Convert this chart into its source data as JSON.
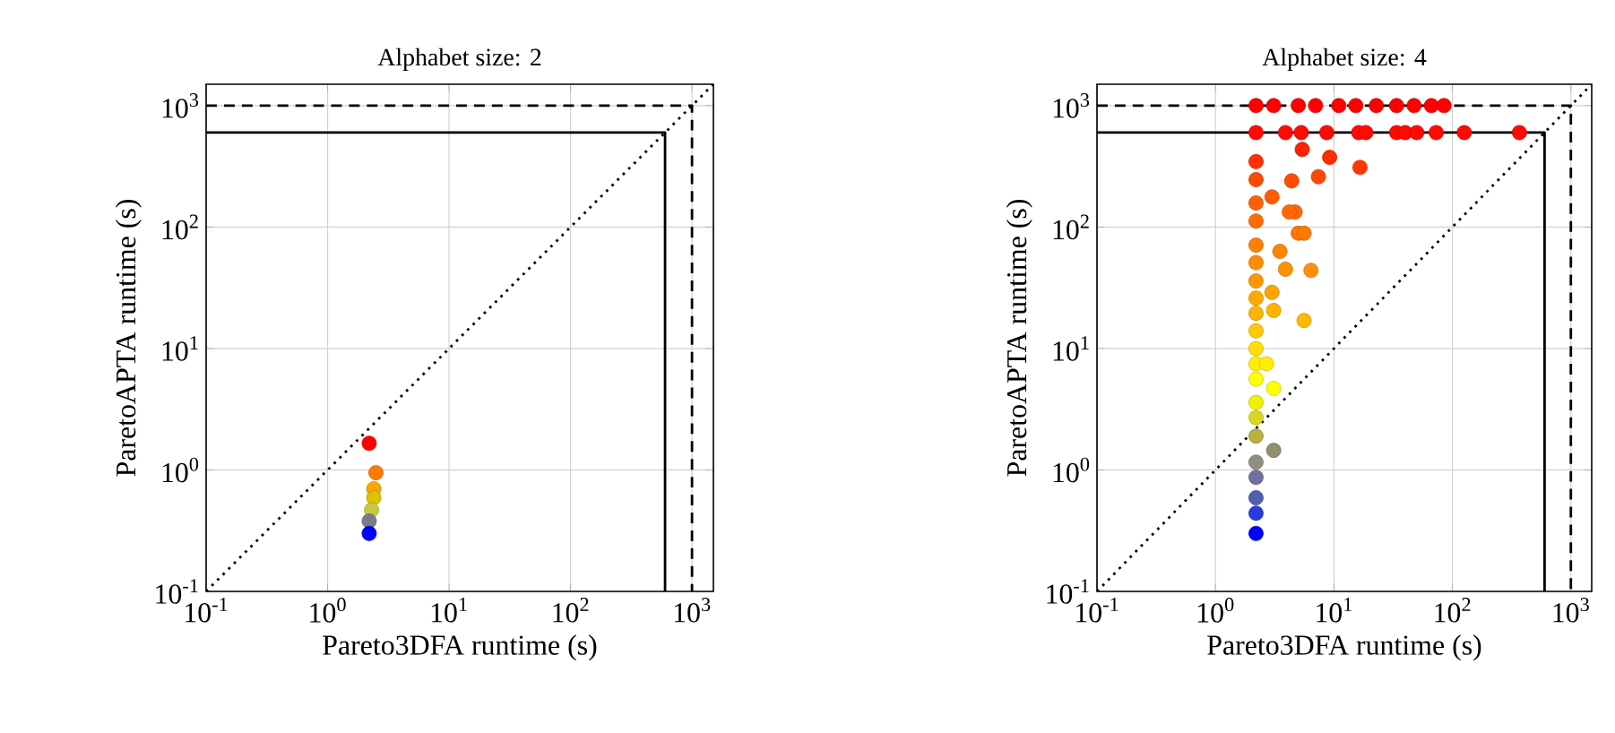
{
  "chart_data": [
    {
      "type": "scatter",
      "title": "Alphabet size: 2",
      "xlabel": "Pareto3DFA runtime (s)",
      "ylabel": "ParetoAPTA runtime (s)",
      "log": "xy",
      "xlim": [
        0.1,
        1500
      ],
      "ylim": [
        0.1,
        1500
      ],
      "xticks": [
        {
          "value": 0.1,
          "label": "10$^{-1}$"
        },
        {
          "value": 1,
          "label": "10$^{0}$"
        },
        {
          "value": 10,
          "label": "10$^{1}$"
        },
        {
          "value": 100,
          "label": "10$^{2}$"
        },
        {
          "value": 1000,
          "label": "10$^{3}$"
        }
      ],
      "yticks": [
        {
          "value": 0.1,
          "label": "10$^{-1}$"
        },
        {
          "value": 1,
          "label": "10$^{0}$"
        },
        {
          "value": 10,
          "label": "10$^{1}$"
        },
        {
          "value": 100,
          "label": "10$^{2}$"
        },
        {
          "value": 1000,
          "label": "10$^{3}$"
        }
      ],
      "grid": true,
      "series": [
        {
          "type": "line",
          "x": [
            0.1,
            1500
          ],
          "values": [
            0.1,
            1500
          ],
          "color": "#000000",
          "line_style": "dotted",
          "marker": "none"
        },
        {
          "type": "line",
          "x": [
            0.1,
            600,
            600
          ],
          "values": [
            600,
            600,
            0.1
          ],
          "color": "#000000",
          "line_style": "solid",
          "marker": "none"
        },
        {
          "type": "line",
          "x": [
            0.1,
            1000,
            1000
          ],
          "values": [
            1000,
            1000,
            0.1
          ],
          "color": "#000000",
          "line_style": "dashed",
          "marker": "none"
        },
        {
          "marker": "circle",
          "x": [
            2.2,
            2.5,
            2.4,
            2.4,
            2.3,
            2.2,
            2.2
          ],
          "values": [
            1.66,
            0.95,
            0.7,
            0.59,
            0.47,
            0.38,
            0.3
          ],
          "colors": [
            "#ff0000",
            "#ff7a00",
            "#ffa500",
            "#e0c000",
            "#c8c840",
            "#7a7a8a",
            "#0000ff"
          ]
        }
      ]
    },
    {
      "type": "scatter",
      "title": "Alphabet size: 4",
      "xlabel": "Pareto3DFA runtime (s)",
      "ylabel": "ParetoAPTA runtime (s)",
      "log": "xy",
      "xlim": [
        0.1,
        1500
      ],
      "ylim": [
        0.1,
        1500
      ],
      "xticks": [
        {
          "value": 0.1,
          "label": "10$^{-1}$"
        },
        {
          "value": 1,
          "label": "10$^{0}$"
        },
        {
          "value": 10,
          "label": "10$^{1}$"
        },
        {
          "value": 100,
          "label": "10$^{2}$"
        },
        {
          "value": 1000,
          "label": "10$^{3}$"
        }
      ],
      "yticks": [
        {
          "value": 0.1,
          "label": "10$^{-1}$"
        },
        {
          "value": 1,
          "label": "10$^{0}$"
        },
        {
          "value": 10,
          "label": "10$^{1}$"
        },
        {
          "value": 100,
          "label": "10$^{2}$"
        },
        {
          "value": 1000,
          "label": "10$^{3}$"
        }
      ],
      "grid": true,
      "series": [
        {
          "type": "line",
          "x": [
            0.1,
            1500
          ],
          "values": [
            0.1,
            1500
          ],
          "color": "#000000",
          "line_style": "dotted",
          "marker": "none"
        },
        {
          "type": "line",
          "x": [
            0.1,
            600,
            600
          ],
          "values": [
            600,
            600,
            0.1
          ],
          "color": "#000000",
          "line_style": "solid",
          "marker": "none"
        },
        {
          "type": "line",
          "x": [
            0.1,
            1000,
            1000
          ],
          "values": [
            1000,
            1000,
            0.1
          ],
          "color": "#000000",
          "line_style": "dashed",
          "marker": "none"
        },
        {
          "marker": "circle",
          "x": [
            2.2,
            2.2,
            2.2,
            2.2,
            2.2,
            2.2,
            2.2,
            2.2,
            2.2,
            2.2,
            2.2,
            2.2,
            2.2,
            2.2,
            2.2,
            2.2,
            2.2,
            2.2,
            2.2,
            2.2,
            2.2,
            3.1,
            3.1,
            2.7,
            3.1,
            5.6,
            6.4,
            3.9,
            5.0,
            5.6,
            4.7,
            4.2,
            3.0,
            3.5,
            3.0,
            4.4,
            7.4,
            9.2,
            16.6,
            5.4,
            2.2,
            3.9,
            5.3,
            8.7,
            16.2,
            18.6,
            33.8,
            40,
            50,
            73,
            126,
            368,
            2.2,
            3.1,
            5.0,
            7.0,
            11.0,
            15.3,
            22.8,
            33.8,
            47.5,
            66.5,
            85
          ],
          "values": [
            0.3,
            0.44,
            0.59,
            0.87,
            1.16,
            1.9,
            2.7,
            3.6,
            5.6,
            7.5,
            10,
            14,
            19.5,
            26,
            36,
            51,
            71,
            112,
            158,
            246,
            346,
            1.45,
            4.7,
            7.5,
            20.6,
            17,
            44,
            45,
            89,
            89,
            133,
            133,
            177,
            63,
            29,
            240,
            260,
            375,
            310,
            436,
            600,
            600,
            600,
            600,
            600,
            600,
            600,
            600,
            600,
            600,
            600,
            600,
            1000,
            1000,
            1000,
            1000,
            1000,
            1000,
            1000,
            1000,
            1000,
            1000,
            1000
          ],
          "colors": [
            "#0000ff",
            "#2a3ae0",
            "#5060b0",
            "#70709a",
            "#909080",
            "#b8b040",
            "#d8d820",
            "#f0f000",
            "#ffff00",
            "#ffee00",
            "#ffe000",
            "#ffc800",
            "#ffb400",
            "#ffa800",
            "#ff9800",
            "#ff8c00",
            "#ff8000",
            "#ff6c00",
            "#ff6000",
            "#ff4800",
            "#ff3000",
            "#909070",
            "#ffff00",
            "#ffee00",
            "#ffb400",
            "#ffb800",
            "#ff9000",
            "#ff9000",
            "#ff7800",
            "#ff7800",
            "#ff6800",
            "#ff6800",
            "#ff5c00",
            "#ff8400",
            "#ffa400",
            "#ff4c00",
            "#ff4800",
            "#ff2c00",
            "#ff3800",
            "#ff2000",
            "#ff0a00",
            "#ff0a00",
            "#ff0a00",
            "#ff0a00",
            "#ff0a00",
            "#ff0a00",
            "#ff0a00",
            "#ff0a00",
            "#ff0a00",
            "#ff0a00",
            "#ff0a00",
            "#ff0a00",
            "#ff0000",
            "#ff0000",
            "#ff0000",
            "#ff0000",
            "#ff0000",
            "#ff0000",
            "#ff0000",
            "#ff0000",
            "#ff0000",
            "#ff0000",
            "#ff0000"
          ]
        }
      ]
    }
  ]
}
